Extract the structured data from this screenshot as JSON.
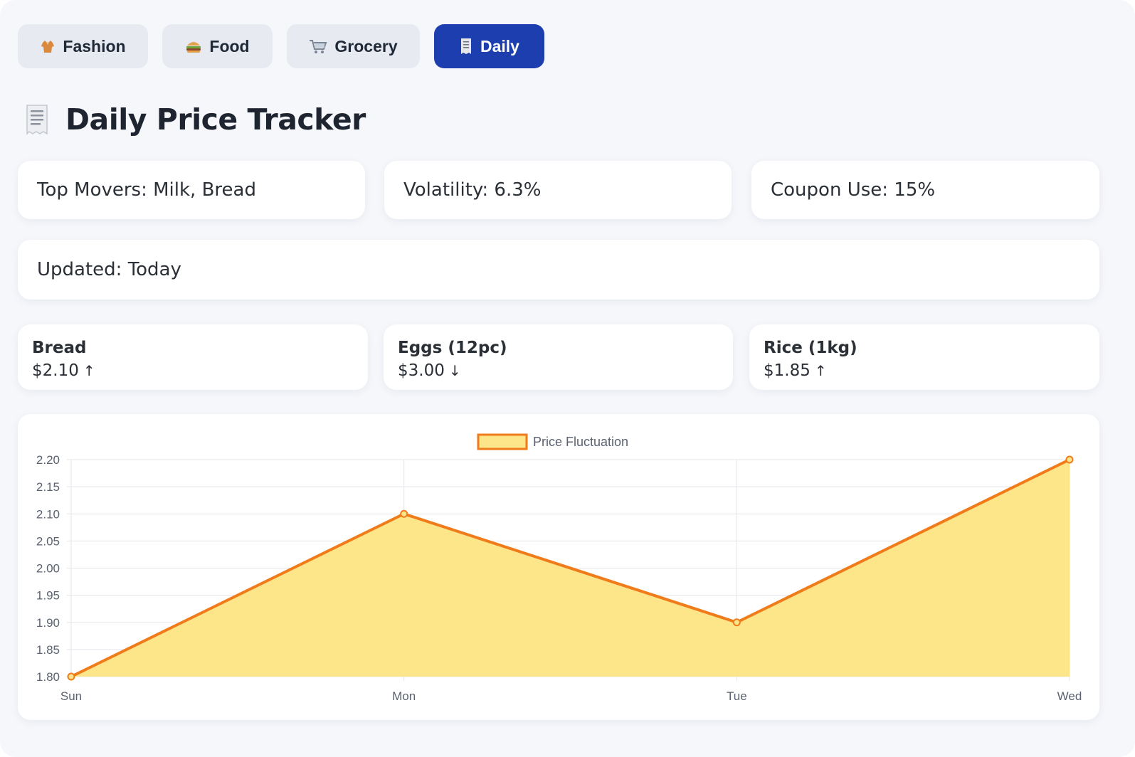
{
  "tabs": [
    {
      "label": "Fashion",
      "icon": "clothing-icon",
      "active": false
    },
    {
      "label": "Food",
      "icon": "burger-icon",
      "active": false
    },
    {
      "label": "Grocery",
      "icon": "cart-icon",
      "active": false
    },
    {
      "label": "Daily",
      "icon": "receipt-icon",
      "active": true
    }
  ],
  "page": {
    "title": "Daily Price Tracker",
    "title_icon": "receipt-icon"
  },
  "stats": {
    "top_movers": "Top Movers: Milk, Bread",
    "volatility": "Volatility: 6.3%",
    "coupon_use": "Coupon Use: 15%",
    "updated": "Updated: Today"
  },
  "items": [
    {
      "name": "Bread",
      "price": "$2.10",
      "trend": "↑"
    },
    {
      "name": "Eggs (12pc)",
      "price": "$3.00",
      "trend": "↓"
    },
    {
      "name": "Rice (1kg)",
      "price": "$1.85",
      "trend": "↑"
    }
  ],
  "colors": {
    "accent": "#1d3eae",
    "line": "#f07b1a",
    "fill": "#fde68a"
  },
  "chart_data": {
    "type": "area",
    "categories": [
      "Sun",
      "Mon",
      "Tue",
      "Wed"
    ],
    "series": [
      {
        "name": "Price Fluctuation",
        "values": [
          1.8,
          2.1,
          1.9,
          2.2
        ]
      }
    ],
    "ylim": [
      1.8,
      2.2
    ],
    "yticks": [
      "2.20",
      "2.15",
      "2.10",
      "2.05",
      "2.00",
      "1.95",
      "1.90",
      "1.85",
      "1.80"
    ],
    "grid": true,
    "legend": "top-center"
  }
}
